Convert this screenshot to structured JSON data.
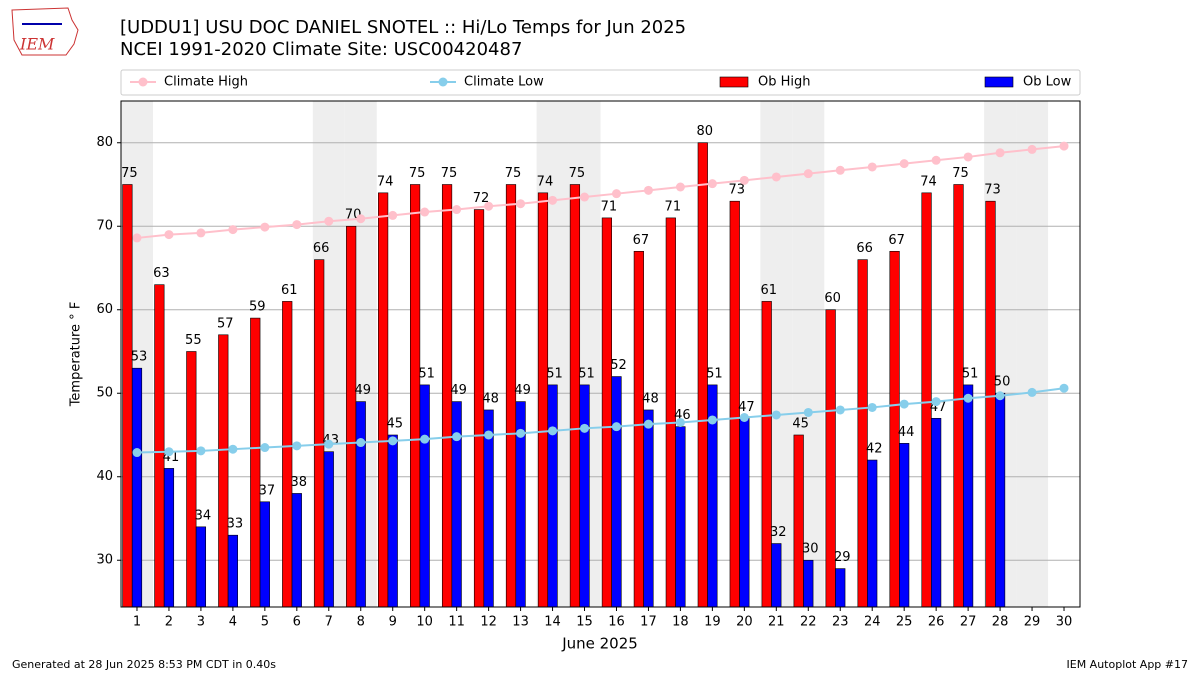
{
  "logo_text": "IEM",
  "footer_left": "Generated at 28 Jun 2025 8:53 PM CDT in 0.40s",
  "footer_right": "IEM Autoplot App #17",
  "chart_data": {
    "type": "bar_line",
    "title": "[UDDU1] USU DOC DANIEL SNOTEL :: Hi/Lo Temps for Jun 2025",
    "subtitle": "NCEI 1991-2020 Climate Site: USC00420487",
    "x_label": "June 2025",
    "y_label": "Temperature ° F",
    "x": [
      1,
      2,
      3,
      4,
      5,
      6,
      7,
      8,
      9,
      10,
      11,
      12,
      13,
      14,
      15,
      16,
      17,
      18,
      19,
      20,
      21,
      22,
      23,
      24,
      25,
      26,
      27,
      28,
      29,
      30
    ],
    "xlim": [
      0.5,
      30.5
    ],
    "xticks": [
      1,
      2,
      3,
      4,
      5,
      6,
      7,
      8,
      9,
      10,
      11,
      12,
      13,
      14,
      15,
      16,
      17,
      18,
      19,
      20,
      21,
      22,
      23,
      24,
      25,
      26,
      27,
      28,
      29,
      30
    ],
    "ylim": [
      24.4,
      85
    ],
    "yticks": [
      30,
      40,
      50,
      60,
      70,
      80
    ],
    "grid": true,
    "shaded_days": [
      1,
      7,
      8,
      14,
      15,
      21,
      22,
      28,
      29
    ],
    "series": [
      {
        "name": "Climate High",
        "kind": "line",
        "color": "#ffc0cb",
        "values": [
          68.6,
          69.0,
          69.2,
          69.6,
          69.9,
          70.2,
          70.6,
          70.9,
          71.3,
          71.7,
          72.0,
          72.4,
          72.7,
          73.1,
          73.5,
          73.9,
          74.3,
          74.7,
          75.1,
          75.5,
          75.9,
          76.3,
          76.7,
          77.1,
          77.5,
          77.9,
          78.3,
          78.8,
          79.2,
          79.6
        ]
      },
      {
        "name": "Climate Low",
        "kind": "line",
        "color": "#87ceeb",
        "values": [
          42.9,
          43.0,
          43.1,
          43.3,
          43.5,
          43.7,
          43.9,
          44.1,
          44.3,
          44.5,
          44.8,
          45.0,
          45.2,
          45.5,
          45.8,
          46.0,
          46.3,
          46.5,
          46.8,
          47.1,
          47.4,
          47.7,
          48.0,
          48.3,
          48.7,
          49.0,
          49.4,
          49.7,
          50.1,
          50.6
        ]
      },
      {
        "name": "Ob High",
        "kind": "bar",
        "color": "#ff0000",
        "values": [
          75,
          63,
          55,
          57,
          59,
          61,
          66,
          70,
          74,
          75,
          75,
          72,
          75,
          74,
          75,
          71,
          67,
          71,
          80,
          73,
          61,
          45,
          60,
          66,
          67,
          74,
          75,
          73,
          null,
          null
        ]
      },
      {
        "name": "Ob Low",
        "kind": "bar",
        "color": "#0000ff",
        "values": [
          53,
          41,
          34,
          33,
          37,
          38,
          43,
          49,
          45,
          51,
          49,
          48,
          49,
          51,
          51,
          52,
          48,
          46,
          51,
          47,
          32,
          30,
          29,
          42,
          44,
          47,
          51,
          50,
          null,
          null
        ]
      }
    ]
  }
}
